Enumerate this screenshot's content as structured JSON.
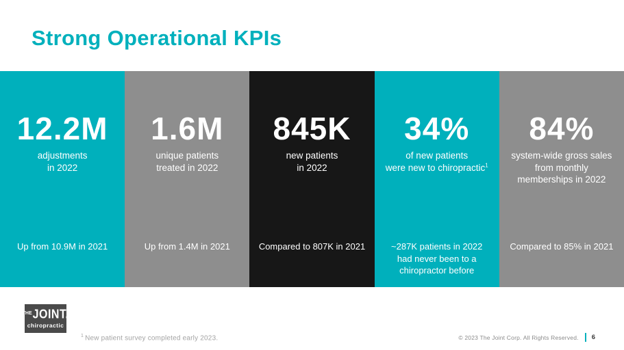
{
  "title": "Strong Operational KPIs",
  "colors": {
    "teal": "#00b0bc",
    "gray": "#8e8e8e",
    "dark": "#171717",
    "logo_box": "#4a4a4a"
  },
  "kpis": [
    {
      "value": "12.2M",
      "label": "adjustments\nin 2022",
      "note": "Up from 10.9M in 2021",
      "theme": "teal"
    },
    {
      "value": "1.6M",
      "label": "unique patients\ntreated in 2022",
      "note": "Up from 1.4M in 2021",
      "theme": "gray"
    },
    {
      "value": "845K",
      "label": "new patients\nin 2022",
      "note": "Compared to 807K in 2021",
      "theme": "dark"
    },
    {
      "value": "34%",
      "label": "of new patients\nwere new to chiropractic",
      "label_superscript": "1",
      "note": "~287K patients in 2022\nhad never been to a\nchiropractor before",
      "theme": "teal"
    },
    {
      "value": "84%",
      "label": "system-wide gross sales\nfrom monthly\nmemberships in 2022",
      "note": "Compared to 85% in 2021",
      "theme": "gray"
    }
  ],
  "logo": {
    "line_the": "THE",
    "line_joint": "JOINT.",
    "line_chiropractic": "chiropractic"
  },
  "footnote": {
    "marker": "1",
    "text": "New patient survey completed early 2023."
  },
  "footer": {
    "copyright": "© 2023 The Joint Corp. All Rights Reserved.",
    "page_number": "6"
  }
}
